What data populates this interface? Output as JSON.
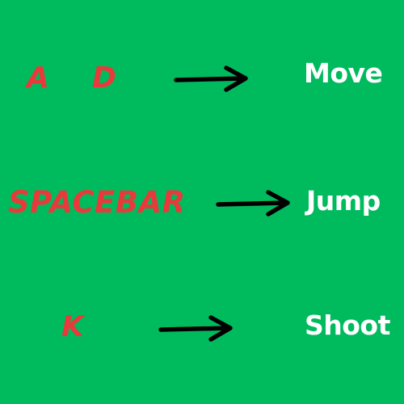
{
  "colors": {
    "background": "#00bb5e",
    "key_text": "#e83a3a",
    "action_text": "#ffffff",
    "arrow": "#000000"
  },
  "controls": [
    {
      "keys": [
        "A",
        "D"
      ],
      "action": "Move",
      "icon": "right-arrow-icon"
    },
    {
      "keys": [
        "SPACEBAR"
      ],
      "action": "Jump",
      "icon": "right-arrow-icon"
    },
    {
      "keys": [
        "K"
      ],
      "action": "Shoot",
      "icon": "right-arrow-icon"
    }
  ]
}
